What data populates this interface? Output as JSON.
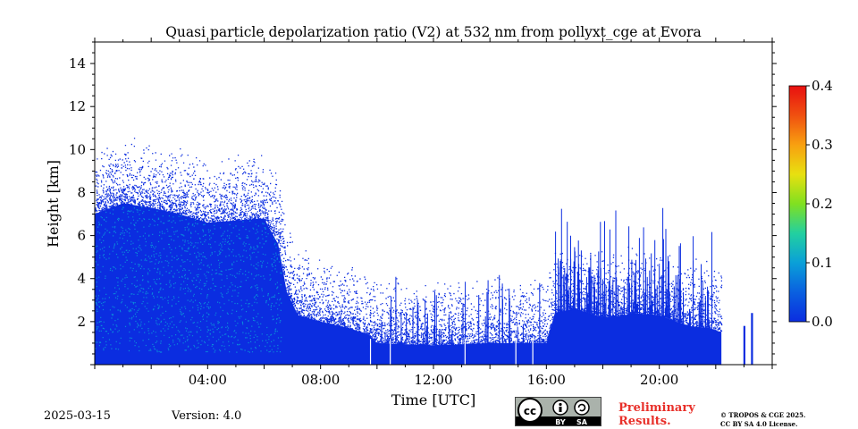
{
  "chart_data": {
    "type": "heatmap",
    "title": "Quasi particle depolarization ratio (V2) at 532 nm from pollyxt_cge at Evora",
    "xlabel": "Time [UTC]",
    "ylabel": "Height [km]",
    "xlim_hours": [
      0,
      24
    ],
    "ylim_km": [
      0,
      15
    ],
    "x_ticks": [
      {
        "value": 4,
        "label": "04:00"
      },
      {
        "value": 8,
        "label": "08:00"
      },
      {
        "value": 12,
        "label": "12:00"
      },
      {
        "value": 16,
        "label": "16:00"
      },
      {
        "value": 20,
        "label": "20:00"
      }
    ],
    "y_ticks": [
      {
        "value": 2,
        "label": "2"
      },
      {
        "value": 4,
        "label": "4"
      },
      {
        "value": 6,
        "label": "6"
      },
      {
        "value": 8,
        "label": "8"
      },
      {
        "value": 10,
        "label": "10"
      },
      {
        "value": 12,
        "label": "12"
      },
      {
        "value": 14,
        "label": "14"
      }
    ],
    "colorbar": {
      "min": 0.0,
      "max": 0.4,
      "ticks": [
        {
          "value": 0.0,
          "label": "0.0"
        },
        {
          "value": 0.1,
          "label": "0.1"
        },
        {
          "value": 0.2,
          "label": "0.2"
        },
        {
          "value": 0.3,
          "label": "0.3"
        },
        {
          "value": 0.4,
          "label": "0.4"
        }
      ],
      "colormap": [
        "#0b2de0",
        "#0a60e0",
        "#0aa0d8",
        "#22d0a0",
        "#80e020",
        "#e8e010",
        "#f8a010",
        "#f05010",
        "#e81010"
      ]
    },
    "dominant_value": 0.02,
    "signal_top_km": [
      [
        0.0,
        7.0
      ],
      [
        1.0,
        7.5
      ],
      [
        2.0,
        7.3
      ],
      [
        3.0,
        7.0
      ],
      [
        4.0,
        6.6
      ],
      [
        5.0,
        6.7
      ],
      [
        6.0,
        6.8
      ],
      [
        6.5,
        5.6
      ],
      [
        6.8,
        3.4
      ],
      [
        7.2,
        2.3
      ],
      [
        8.0,
        2.0
      ],
      [
        9.0,
        1.7
      ],
      [
        9.7,
        1.4
      ],
      [
        10.0,
        1.0
      ],
      [
        12.0,
        0.9
      ],
      [
        14.0,
        1.0
      ],
      [
        16.0,
        1.0
      ],
      [
        16.3,
        2.4
      ],
      [
        17.0,
        2.6
      ],
      [
        18.0,
        2.2
      ],
      [
        18.8,
        2.3
      ],
      [
        19.0,
        2.4
      ],
      [
        20.0,
        2.3
      ],
      [
        21.0,
        1.8
      ],
      [
        21.8,
        1.7
      ],
      [
        22.2,
        1.5
      ]
    ],
    "gaps_hours": [
      [
        22.2,
        23.0
      ],
      [
        23.4,
        24.0
      ]
    ]
  },
  "footer": {
    "date": "2025-03-15",
    "version": "Version: 4.0",
    "cc_by": "BY",
    "cc_sa": "SA",
    "preliminary_line1": "Preliminary",
    "preliminary_line2": "Results.",
    "copyright_line1": "© TROPOS & CGE 2025.",
    "copyright_line2": "CC BY SA 4.0 License."
  }
}
